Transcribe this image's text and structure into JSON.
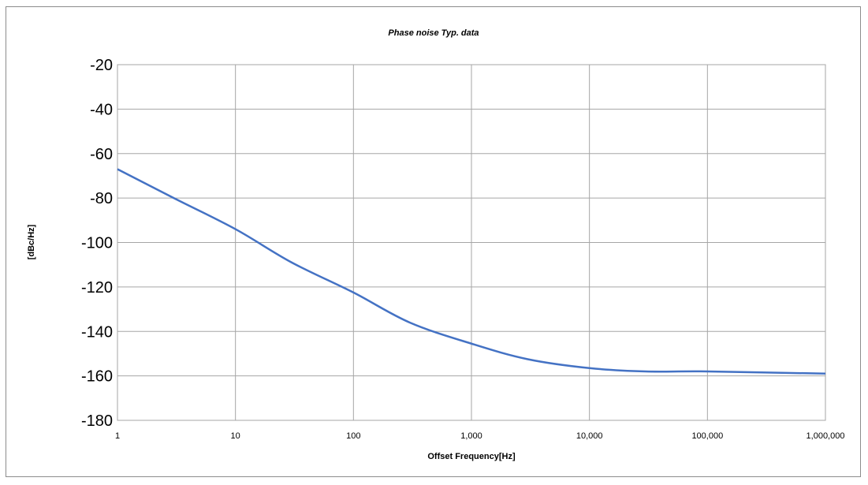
{
  "chart_data": {
    "type": "line",
    "title": "Phase noise Typ. data",
    "xlabel": "Offset Frequency[Hz]",
    "ylabel": "[dBc/Hz]",
    "x_scale": "log",
    "xlim": [
      1,
      1000000
    ],
    "ylim": [
      -180,
      -20
    ],
    "x_ticks": [
      1,
      10,
      100,
      1000,
      10000,
      100000,
      1000000
    ],
    "x_tick_labels": [
      "1",
      "10",
      "100",
      "1,000",
      "10,000",
      "100,000",
      "1,000,000"
    ],
    "y_ticks": [
      -20,
      -40,
      -60,
      -80,
      -100,
      -120,
      -140,
      -160,
      -180
    ],
    "y_tick_labels": [
      "-20",
      "-40",
      "-60",
      "-80",
      "-100",
      "-120",
      "-140",
      "-160",
      "-180"
    ],
    "grid": true,
    "series": [
      {
        "color": "#4472c4",
        "x": [
          1,
          3,
          10,
          30,
          100,
          300,
          1000,
          3000,
          10000,
          30000,
          100000,
          1000000
        ],
        "y": [
          -67,
          -80,
          -94,
          -109,
          -122.5,
          -136,
          -145.5,
          -152.5,
          -156.5,
          -158,
          -158,
          -159
        ]
      }
    ]
  }
}
